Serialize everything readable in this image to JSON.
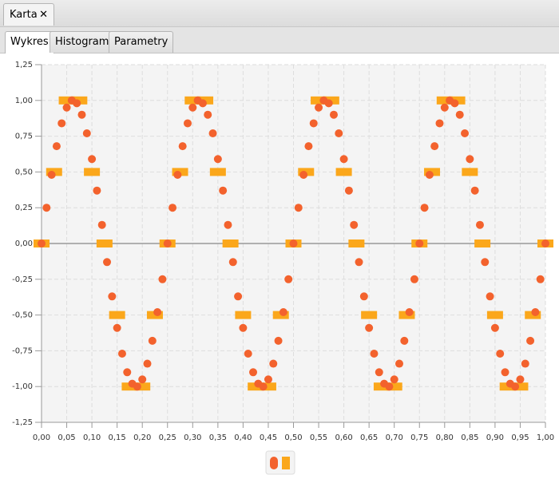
{
  "window_tab": "Karta",
  "tabs": [
    "Wykres",
    "Histogram",
    "Parametry"
  ],
  "chart_data": {
    "type": "scatter",
    "xlim": [
      0,
      1
    ],
    "ylim": [
      -1.25,
      1.25
    ],
    "xticks": [
      {
        "value": 0,
        "label": "0,00"
      },
      {
        "value": 0.05,
        "label": "0,05"
      },
      {
        "value": 0.1,
        "label": "0,10"
      },
      {
        "value": 0.15,
        "label": "0,15"
      },
      {
        "value": 0.2,
        "label": "0,20"
      },
      {
        "value": 0.25,
        "label": "0,25"
      },
      {
        "value": 0.3,
        "label": "0,30"
      },
      {
        "value": 0.35,
        "label": "0,35"
      },
      {
        "value": 0.4,
        "label": "0,40"
      },
      {
        "value": 0.45,
        "label": "0,45"
      },
      {
        "value": 0.5,
        "label": "0,50"
      },
      {
        "value": 0.55,
        "label": "0,55"
      },
      {
        "value": 0.6,
        "label": "0,60"
      },
      {
        "value": 0.65,
        "label": "0,65"
      },
      {
        "value": 0.7,
        "label": "0,70"
      },
      {
        "value": 0.75,
        "label": "0,75"
      },
      {
        "value": 0.8,
        "label": "0,80"
      },
      {
        "value": 0.85,
        "label": "0,85"
      },
      {
        "value": 0.9,
        "label": "0,90"
      },
      {
        "value": 0.95,
        "label": "0,95"
      },
      {
        "value": 1,
        "label": "1,00"
      }
    ],
    "yticks": [
      {
        "value": -1.25,
        "label": "-1,25"
      },
      {
        "value": -1,
        "label": "-1,00"
      },
      {
        "value": -0.75,
        "label": "-0,75"
      },
      {
        "value": -0.5,
        "label": "-0,50"
      },
      {
        "value": -0.25,
        "label": "-0,25"
      },
      {
        "value": 0,
        "label": "0,00"
      },
      {
        "value": 0.25,
        "label": "0,25"
      },
      {
        "value": 0.5,
        "label": "0,50"
      },
      {
        "value": 0.75,
        "label": "0,75"
      },
      {
        "value": 1,
        "label": "1,00"
      },
      {
        "value": 1.25,
        "label": "1,25"
      }
    ],
    "grid": true,
    "legend": "bottom",
    "series": [
      {
        "color": "#f3622d",
        "marker": "circle",
        "x": [
          0,
          0.01,
          0.02,
          0.03,
          0.04,
          0.05,
          0.06,
          0.07,
          0.08,
          0.09,
          0.1,
          0.11,
          0.12,
          0.13,
          0.14,
          0.15,
          0.16,
          0.17,
          0.18,
          0.19,
          0.2,
          0.21,
          0.22,
          0.23,
          0.24,
          0.25,
          0.26,
          0.27,
          0.28,
          0.29,
          0.3,
          0.31,
          0.32,
          0.33,
          0.34,
          0.35,
          0.36,
          0.37,
          0.38,
          0.39,
          0.4,
          0.41,
          0.42,
          0.43,
          0.44,
          0.45,
          0.46,
          0.47,
          0.48,
          0.49,
          0.5,
          0.51,
          0.52,
          0.53,
          0.54,
          0.55,
          0.56,
          0.57,
          0.58,
          0.59,
          0.6,
          0.61,
          0.62,
          0.63,
          0.64,
          0.65,
          0.66,
          0.67,
          0.68,
          0.69,
          0.7,
          0.71,
          0.72,
          0.73,
          0.74,
          0.75,
          0.76,
          0.77,
          0.78,
          0.79,
          0.8,
          0.81,
          0.82,
          0.83,
          0.84,
          0.85,
          0.86,
          0.87,
          0.88,
          0.89,
          0.9,
          0.91,
          0.92,
          0.93,
          0.94,
          0.95,
          0.96,
          0.97,
          0.98,
          0.99,
          1
        ],
        "values": [
          0,
          0.25,
          0.48,
          0.68,
          0.84,
          0.95,
          1,
          0.98,
          0.9,
          0.77,
          0.59,
          0.37,
          0.13,
          -0.13,
          -0.37,
          -0.59,
          -0.77,
          -0.9,
          -0.98,
          -1,
          -0.95,
          -0.84,
          -0.68,
          -0.48,
          -0.25,
          0,
          0.25,
          0.48,
          0.68,
          0.84,
          0.95,
          1,
          0.98,
          0.9,
          0.77,
          0.59,
          0.37,
          0.13,
          -0.13,
          -0.37,
          -0.59,
          -0.77,
          -0.9,
          -0.98,
          -1,
          -0.95,
          -0.84,
          -0.68,
          -0.48,
          -0.25,
          0,
          0.25,
          0.48,
          0.68,
          0.84,
          0.95,
          1,
          0.98,
          0.9,
          0.77,
          0.59,
          0.37,
          0.13,
          -0.13,
          -0.37,
          -0.59,
          -0.77,
          -0.9,
          -0.98,
          -1,
          -0.95,
          -0.84,
          -0.68,
          -0.48,
          -0.25,
          0,
          0.25,
          0.48,
          0.68,
          0.84,
          0.95,
          1,
          0.98,
          0.9,
          0.77,
          0.59,
          0.37,
          0.13,
          -0.13,
          -0.37,
          -0.59,
          -0.77,
          -0.9,
          -0.98,
          -1,
          -0.95,
          -0.84,
          -0.68,
          -0.48,
          -0.25,
          0
        ]
      },
      {
        "color": "#fba71b",
        "marker": "square",
        "x": [
          0,
          0.025,
          0.05,
          0.075,
          0.1,
          0.125,
          0.15,
          0.175,
          0.2,
          0.225,
          0.25,
          0.275,
          0.3,
          0.325,
          0.35,
          0.375,
          0.4,
          0.425,
          0.45,
          0.475,
          0.5,
          0.525,
          0.55,
          0.575,
          0.6,
          0.625,
          0.65,
          0.675,
          0.7,
          0.725,
          0.75,
          0.775,
          0.8,
          0.825,
          0.85,
          0.875,
          0.9,
          0.925,
          0.95,
          0.975,
          1
        ],
        "values": [
          0,
          0.5,
          1,
          1,
          0.5,
          0,
          -0.5,
          -1,
          -1,
          -0.5,
          0,
          0.5,
          1,
          1,
          0.5,
          0,
          -0.5,
          -1,
          -1,
          -0.5,
          0,
          0.5,
          1,
          1,
          0.5,
          0,
          -0.5,
          -1,
          -1,
          -0.5,
          0,
          0.5,
          1,
          1,
          0.5,
          0,
          -0.5,
          -1,
          -1,
          -0.5,
          0
        ]
      }
    ]
  }
}
